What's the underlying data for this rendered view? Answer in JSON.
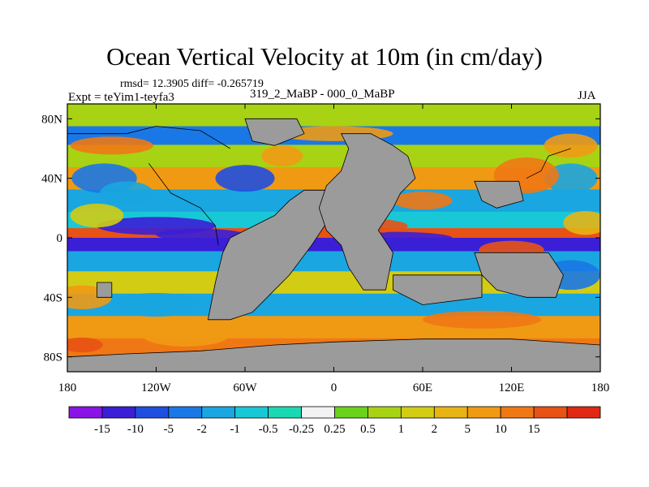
{
  "title": "Ocean Vertical Velocity at 10m (in cm/day)",
  "stats": "rmsd= 12.3905 diff= -0.265719",
  "experiment": "Expt = teYim1-teyfa3",
  "comparison": "319_2_MaBP - 000_0_MaBP",
  "season": "JJA",
  "axes": {
    "lat_ticks": [
      {
        "label": "80N",
        "value": 80
      },
      {
        "label": "40N",
        "value": 40
      },
      {
        "label": "0",
        "value": 0
      },
      {
        "label": "40S",
        "value": -40
      },
      {
        "label": "80S",
        "value": -80
      }
    ],
    "lon_ticks": [
      {
        "label": "180",
        "value": -180
      },
      {
        "label": "120W",
        "value": -120
      },
      {
        "label": "60W",
        "value": -60
      },
      {
        "label": "0",
        "value": 0
      },
      {
        "label": "60E",
        "value": 60
      },
      {
        "label": "120E",
        "value": 120
      },
      {
        "label": "180",
        "value": 180
      }
    ]
  },
  "colorbar": {
    "colors": [
      "#8a14e6",
      "#3a1fd6",
      "#1e4fe0",
      "#1a78e6",
      "#1aa6e0",
      "#19c8d6",
      "#1ad8b4",
      "#f2f2f2",
      "#6ad21a",
      "#a8d214",
      "#d2cc14",
      "#e6b414",
      "#f09a14",
      "#f07814",
      "#e85214",
      "#e02814"
    ],
    "labels": [
      "-15",
      "-10",
      "-5",
      "-2",
      "-1",
      "-0.5",
      "-0.25",
      "0.25",
      "0.5",
      "1",
      "2",
      "5",
      "10",
      "15"
    ]
  },
  "land_color": "#9b9b9b",
  "chart_data": {
    "type": "heatmap",
    "title": "Ocean Vertical Velocity at 10m (in cm/day)",
    "units": "cm/day",
    "xlim": [
      -180,
      180
    ],
    "ylim": [
      -90,
      90
    ],
    "levels": [
      -15,
      -10,
      -5,
      -2,
      -1,
      -0.5,
      -0.25,
      0.25,
      0.5,
      1,
      2,
      5,
      10,
      15
    ],
    "zonal_bands": [
      {
        "lat": 80,
        "value": 0.5
      },
      {
        "lat": 70,
        "value": -5
      },
      {
        "lat": 55,
        "value": 0.5
      },
      {
        "lat": 40,
        "value": 5
      },
      {
        "lat": 25,
        "value": -2
      },
      {
        "lat": 10,
        "value": -1
      },
      {
        "lat": 3,
        "value": 15
      },
      {
        "lat": -3,
        "value": -15
      },
      {
        "lat": -15,
        "value": -2
      },
      {
        "lat": -30,
        "value": 1
      },
      {
        "lat": -45,
        "value": -2
      },
      {
        "lat": -60,
        "value": 5
      },
      {
        "lat": -75,
        "value": 10
      }
    ]
  }
}
